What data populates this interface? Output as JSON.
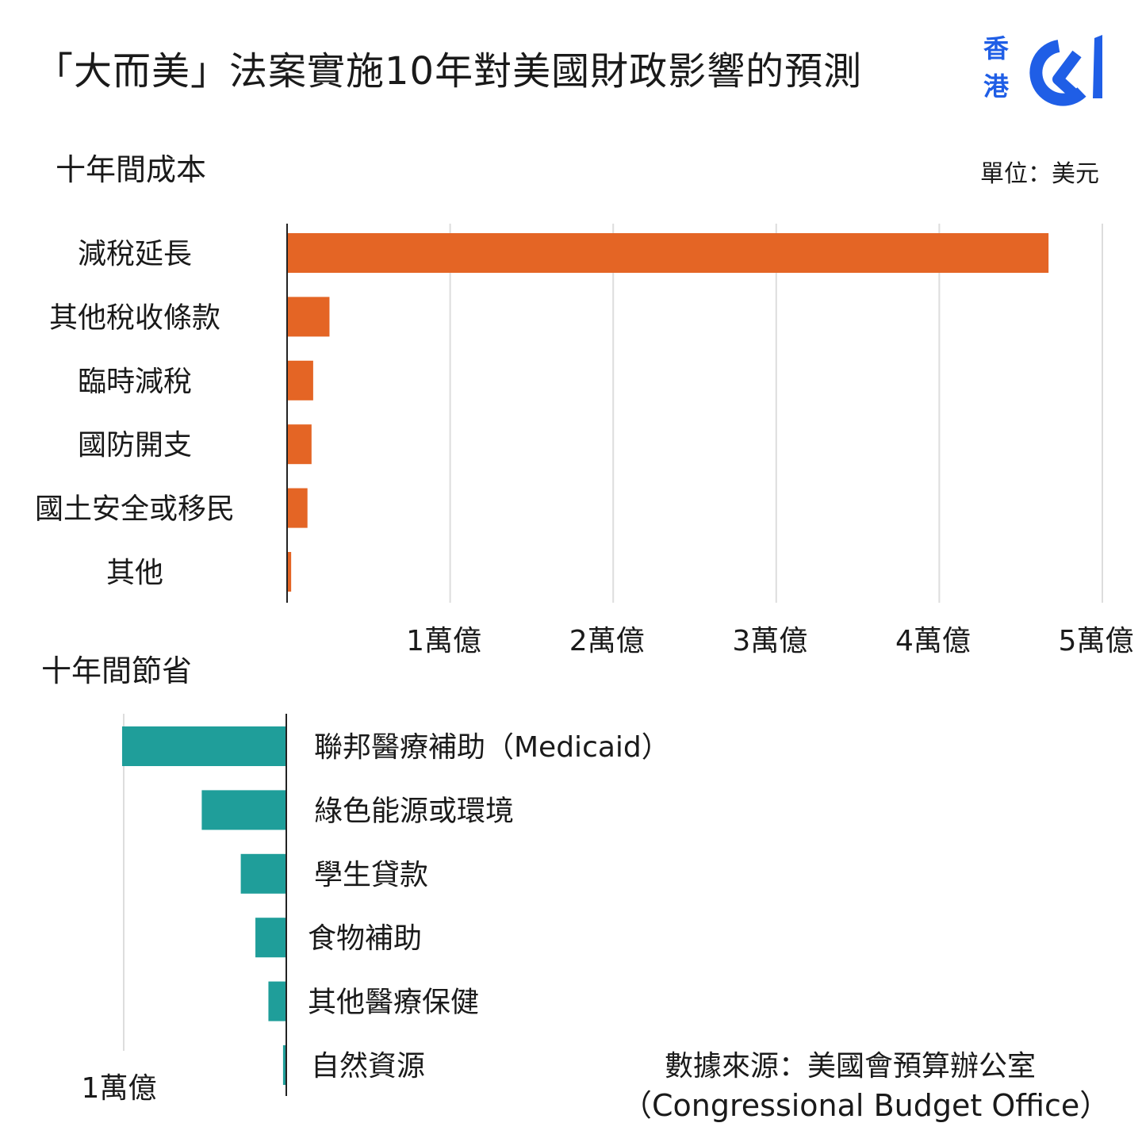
{
  "header": {
    "title": "「大而美」法案實施10年對美國財政影響的預測",
    "logo": {
      "top": "香",
      "bottom": "港",
      "mark": "01"
    }
  },
  "unit": "單位：美元",
  "source": {
    "line1": "數據來源：美國會預算辦公室",
    "line2": "（Congressional Budget Office）"
  },
  "colors": {
    "cost_bar": "#e46525",
    "saving_bar": "#1f9e9a",
    "grid": "#dddddd",
    "axis": "#222222",
    "logo_blue": "#1f5ee6"
  },
  "chart_data": [
    {
      "type": "bar",
      "orientation": "horizontal",
      "title": "十年間成本",
      "categories": [
        "減稅延長",
        "其他稅收條款",
        "臨時減稅",
        "國防開支",
        "國土安全或移民",
        "其他"
      ],
      "values": [
        4.67,
        0.26,
        0.16,
        0.15,
        0.125,
        0.025
      ],
      "value_unit": "萬億",
      "xlim": [
        0,
        5
      ],
      "ticks": [
        1,
        2,
        3,
        4,
        5
      ],
      "tick_labels": [
        "1萬億",
        "2萬億",
        "3萬億",
        "4萬億",
        "5萬億"
      ],
      "grid": true
    },
    {
      "type": "bar",
      "orientation": "horizontal",
      "direction": "leftward",
      "title": "十年間節省",
      "categories": [
        "聯邦醫療補助（Medicaid）",
        "綠色能源或環境",
        "學生貸款",
        "食物補助",
        "其他醫療保健",
        "自然資源"
      ],
      "values": [
        1.01,
        0.52,
        0.28,
        0.19,
        0.11,
        0.02
      ],
      "value_unit": "萬億",
      "xlim": [
        0,
        1.0
      ],
      "ticks": [
        1
      ],
      "tick_labels": [
        "1萬億"
      ],
      "grid": true
    }
  ]
}
